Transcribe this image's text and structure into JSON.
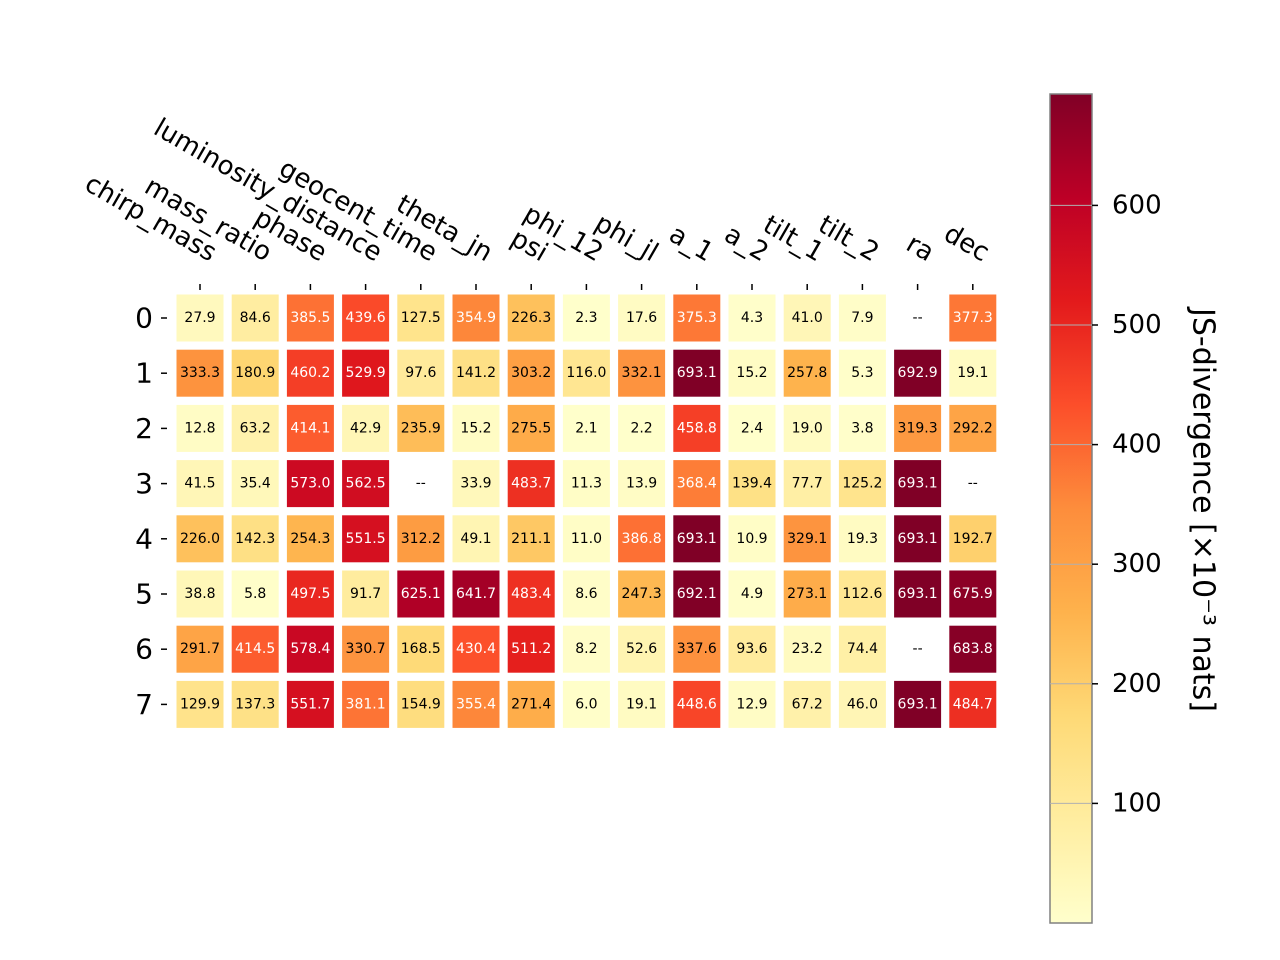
{
  "chart_data": {
    "type": "heatmap",
    "columns": [
      "chirp_mass",
      "mass_ratio",
      "phase",
      "luminosity_distance",
      "geocent_time",
      "theta_jn",
      "psi",
      "phi_12",
      "phi_jl",
      "a_1",
      "a_2",
      "tilt_1",
      "tilt_2",
      "ra",
      "dec"
    ],
    "rows": [
      "0",
      "1",
      "2",
      "3",
      "4",
      "5",
      "6",
      "7"
    ],
    "values": [
      [
        27.9,
        84.6,
        385.5,
        439.6,
        127.5,
        354.9,
        226.3,
        2.3,
        17.6,
        375.3,
        4.3,
        41.0,
        7.9,
        null,
        377.3
      ],
      [
        333.3,
        180.9,
        460.2,
        529.9,
        97.6,
        141.2,
        303.2,
        116.0,
        332.1,
        693.1,
        15.2,
        257.8,
        5.3,
        692.9,
        19.1
      ],
      [
        12.8,
        63.2,
        414.1,
        42.9,
        235.9,
        15.2,
        275.5,
        2.1,
        2.2,
        458.8,
        2.4,
        19.0,
        3.8,
        319.3,
        292.2
      ],
      [
        41.5,
        35.4,
        573.0,
        562.5,
        null,
        33.9,
        483.7,
        11.3,
        13.9,
        368.4,
        139.4,
        77.7,
        125.2,
        693.1,
        null
      ],
      [
        226.0,
        142.3,
        254.3,
        551.5,
        312.2,
        49.1,
        211.1,
        11.0,
        386.8,
        693.1,
        10.9,
        329.1,
        19.3,
        693.1,
        192.7
      ],
      [
        38.8,
        5.8,
        497.5,
        91.7,
        625.1,
        641.7,
        483.4,
        8.6,
        247.3,
        692.1,
        4.9,
        273.1,
        112.6,
        693.1,
        675.9
      ],
      [
        291.7,
        414.5,
        578.4,
        330.7,
        168.5,
        430.4,
        511.2,
        8.2,
        52.6,
        337.6,
        93.6,
        23.2,
        74.4,
        null,
        683.8
      ],
      [
        129.9,
        137.3,
        551.7,
        381.1,
        154.9,
        355.4,
        271.4,
        6.0,
        19.1,
        448.6,
        12.9,
        67.2,
        46.0,
        693.1,
        484.7
      ]
    ],
    "missing_label": "--",
    "colormap": "YlOrRd",
    "vmin": 0,
    "vmax": 693.1,
    "colorbar": {
      "label": "JS-divergence [×10⁻³ nats]",
      "ticks": [
        100,
        200,
        300,
        400,
        500,
        600
      ],
      "grid": true
    }
  }
}
